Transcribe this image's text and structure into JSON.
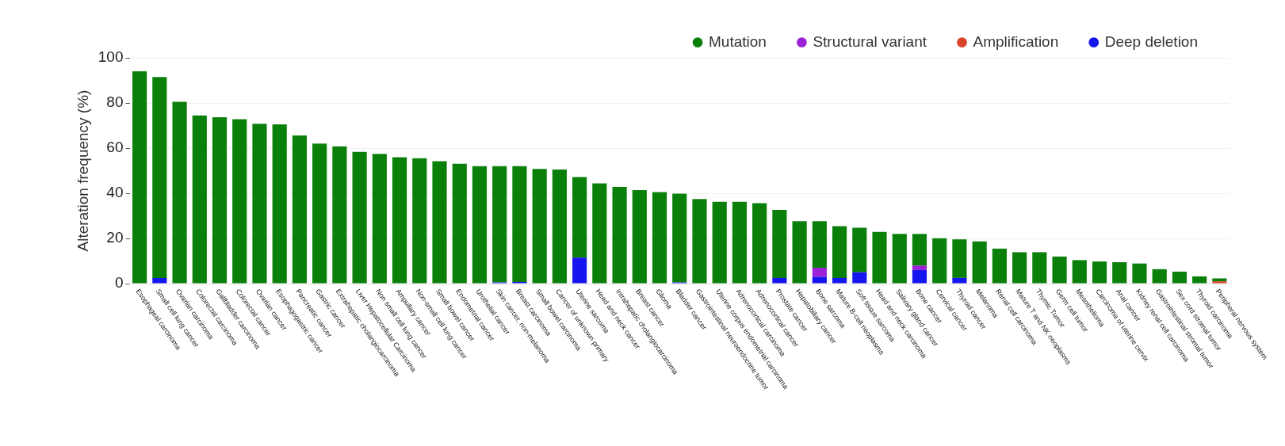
{
  "chart_data": {
    "type": "bar",
    "ylabel": "Alteration frequency (%)",
    "categories": [
      "Esophageal carcinoma",
      "Small cell lung cancer",
      "Ovarian carcinoma",
      "Colorectal carcinoma",
      "Gallbladder carcinoma",
      "Colorectal cancer",
      "Ovarian cancer",
      "Esophagogastric cancer",
      "Pancreatic cancer",
      "Gastric cancer",
      "Extrahepatic cholangiocarcinoma",
      "Liver Hepatocellular Carcinoma",
      "Non small cell lung cancer",
      "Ampullary cancer",
      "Non-small cell lung cancer",
      "Small bowel cancer",
      "Endometrial cancer",
      "Urothelial cancer",
      "Skin cancer, non-melanoma",
      "Breast carcinoma",
      "Small bowel carcinoma",
      "Cancer of unknown primary",
      "Uterine sarcoma",
      "Head and neck cancer",
      "Intrahepatic cholangiocarcinoma",
      "Breast cancer",
      "Glioma",
      "Bladder cancer",
      "Gastrointestinal neuroendocrine tumor",
      "Uterine corpus endometrial carcinoma",
      "Adrenocortical carcinoma",
      "Adrenocortical cancer",
      "Prostate cancer",
      "Hepatobiliary cancer",
      "Bone sarcoma",
      "Mature B-cell neoplasms",
      "Soft tissue sarcoma",
      "Head and neck carcinoma",
      "Salivary gland cancer",
      "Bone cancer",
      "Cervical cancer",
      "Thyroid cancer",
      "Melanoma",
      "Renal cell carcinoma",
      "Mature T and NK neoplasms",
      "Thymic Tumor",
      "Germ cell tumor",
      "Mesothelioma",
      "Carcinoma of uterine cervix",
      "Anal cancer",
      "Kidney renal cell carcinoma",
      "Gastrointestinal stromal tumor",
      "Sex cord stromal tumor",
      "Thyroid carcinoma",
      "Peripheral nervous system"
    ],
    "stacked": true,
    "series": [
      {
        "name": "Deep deletion",
        "color": "#1515f0",
        "values": [
          null,
          2.5,
          null,
          null,
          null,
          null,
          null,
          null,
          null,
          null,
          null,
          null,
          null,
          null,
          null,
          null,
          null,
          null,
          0.5,
          0.7,
          null,
          null,
          11.5,
          null,
          null,
          null,
          null,
          0.5,
          null,
          null,
          null,
          null,
          2.5,
          null,
          3,
          2.5,
          5,
          null,
          null,
          6,
          null,
          2.5,
          null,
          null,
          null,
          null,
          null,
          null,
          null,
          null,
          null,
          null,
          null,
          null,
          null
        ]
      },
      {
        "name": "Amplification",
        "color": "#d9432a",
        "values": [
          null,
          null,
          null,
          null,
          null,
          null,
          null,
          null,
          null,
          null,
          null,
          null,
          null,
          null,
          null,
          null,
          null,
          null,
          null,
          null,
          null,
          null,
          null,
          null,
          null,
          null,
          null,
          null,
          null,
          null,
          null,
          null,
          null,
          null,
          null,
          null,
          null,
          null,
          null,
          null,
          null,
          null,
          null,
          null,
          null,
          null,
          null,
          null,
          null,
          null,
          null,
          null,
          null,
          null,
          1
        ]
      },
      {
        "name": "Structural variant",
        "color": "#9b22d6",
        "values": [
          null,
          null,
          null,
          null,
          null,
          null,
          null,
          null,
          null,
          null,
          null,
          null,
          null,
          null,
          null,
          null,
          null,
          null,
          null,
          null,
          null,
          null,
          null,
          null,
          null,
          null,
          null,
          null,
          null,
          null,
          null,
          null,
          null,
          null,
          4,
          null,
          null,
          null,
          null,
          2,
          null,
          null,
          null,
          null,
          null,
          null,
          null,
          null,
          null,
          null,
          null,
          null,
          null,
          null,
          null
        ]
      },
      {
        "name": "Mutation",
        "color": "#0a800a",
        "values": [
          94,
          89,
          80.5,
          74.5,
          73.7,
          72.8,
          70.8,
          70.5,
          65.6,
          62,
          60.8,
          58.3,
          57.5,
          56,
          55.5,
          54.2,
          53.1,
          52,
          51.5,
          51.3,
          50.8,
          50.5,
          35.7,
          44.4,
          42.8,
          41.4,
          40.5,
          39.3,
          37.5,
          36.2,
          36.2,
          35.6,
          30.1,
          27.6,
          20.6,
          22.9,
          19.7,
          22.9,
          22,
          14,
          20.1,
          17.1,
          18.7,
          15.5,
          13.9,
          13.9,
          12,
          10.4,
          9.8,
          9.5,
          8.9,
          6.4,
          5.3,
          3.2,
          1.3
        ]
      }
    ],
    "ylim": [
      0,
      100
    ],
    "yticks": [
      0,
      20,
      40,
      60,
      80,
      100
    ],
    "grid": "y",
    "legend": "top right"
  }
}
